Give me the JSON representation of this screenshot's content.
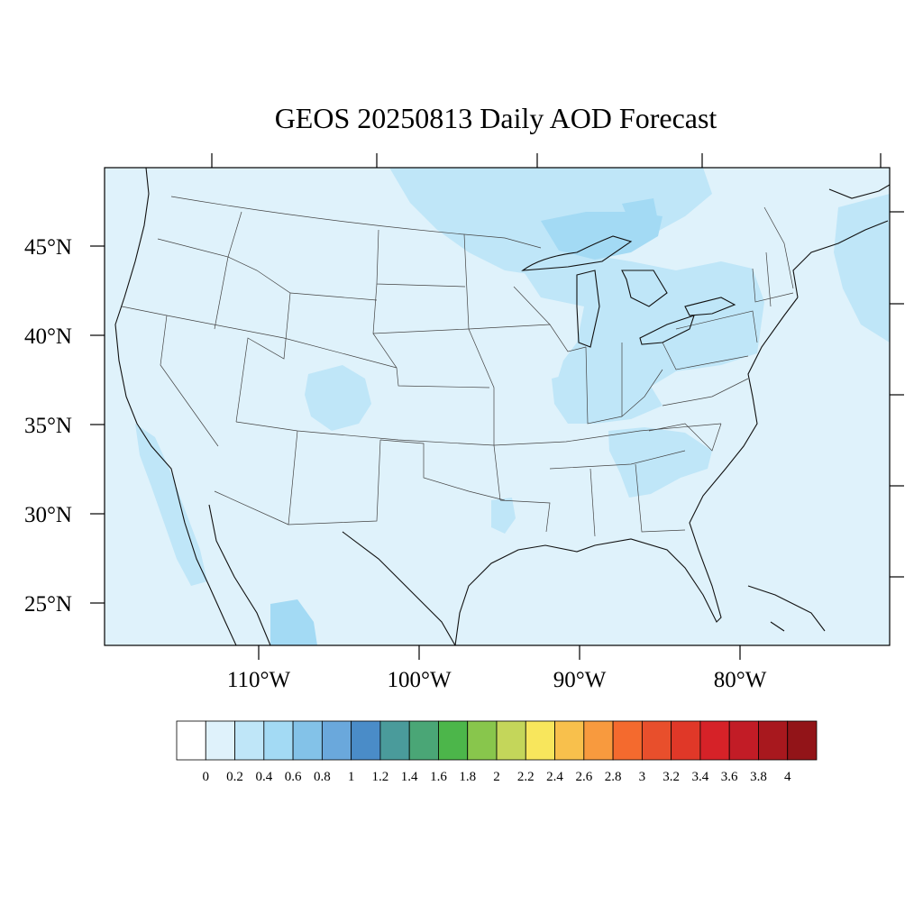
{
  "title": "GEOS 20250813 Daily AOD Forecast",
  "map": {
    "background_color": "#dff2fb",
    "lat_labels": [
      "45°N",
      "40°N",
      "35°N",
      "30°N",
      "25°N"
    ],
    "lon_labels": [
      "110°W",
      "100°W",
      "90°W",
      "80°W"
    ],
    "plumes": [
      {
        "name": "northern-plume",
        "level": 0.3,
        "color": "#bfe6f8"
      },
      {
        "name": "great-lakes-plume",
        "level": 0.3,
        "color": "#bfe6f8"
      },
      {
        "name": "ohio-valley-plume",
        "level": 0.3,
        "color": "#bfe6f8"
      },
      {
        "name": "southeast-plume",
        "level": 0.3,
        "color": "#bfe6f8"
      },
      {
        "name": "colorado-plume",
        "level": 0.3,
        "color": "#bfe6f8"
      },
      {
        "name": "baja-plume",
        "level": 0.3,
        "color": "#bfe6f8"
      },
      {
        "name": "atlantic-plume",
        "level": 0.3,
        "color": "#bfe6f8"
      },
      {
        "name": "minnesota-core",
        "level": 0.5,
        "color": "#a3daf4"
      }
    ]
  },
  "colorbar": {
    "labels": [
      "0",
      "0.2",
      "0.4",
      "0.6",
      "0.8",
      "1",
      "1.2",
      "1.4",
      "1.6",
      "1.8",
      "2",
      "2.2",
      "2.4",
      "2.6",
      "2.8",
      "3",
      "3.2",
      "3.4",
      "3.6",
      "3.8",
      "4"
    ],
    "colors": [
      "#ffffff",
      "#dff2fb",
      "#bfe6f8",
      "#a3daf4",
      "#83c2e8",
      "#6aa8dc",
      "#4a8cc8",
      "#4a9b9b",
      "#4aa676",
      "#4cb64a",
      "#88c64c",
      "#c4d65a",
      "#f8e65c",
      "#f8c04c",
      "#f89a3e",
      "#f46a2e",
      "#e84f2c",
      "#e03828",
      "#d62228",
      "#c21c26",
      "#a8181e",
      "#921418"
    ]
  }
}
